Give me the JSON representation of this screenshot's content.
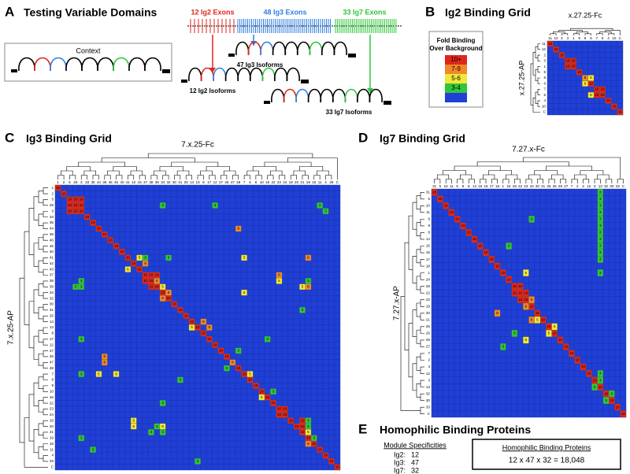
{
  "panel_a": {
    "letter": "A",
    "title": "Testing Variable Domains",
    "context": "Context",
    "exons": [
      "12 Ig2 Exons",
      "48 Ig3 Exons",
      "33 Ig7 Exons"
    ],
    "isoforms": [
      "47 Ig3 Isoforms",
      "12 Ig2 Isoforms",
      "33 Ig7 Isoforms"
    ]
  },
  "panel_b": {
    "letter": "B",
    "title": "Ig2 Binding Grid",
    "legend": {
      "title": [
        "Fold Binding",
        "Over Background"
      ],
      "levels": [
        {
          "label": "10+",
          "color": "#e0261b"
        },
        {
          "label": "7-9",
          "color": "#f0892a"
        },
        {
          "label": "5-6",
          "color": "#f2e83a"
        },
        {
          "label": "3-4",
          "color": "#2fc63a"
        }
      ],
      "background_color": "#1f3fd6"
    },
    "grid": {
      "x_label": "x.27.25-Fc",
      "y_label": "x.27.25-AP",
      "labels": [
        "11",
        "12",
        "2",
        "3",
        "1",
        "9",
        "8",
        "6",
        "7",
        "5",
        "4",
        "10",
        "C"
      ],
      "diagonal": [
        10,
        10,
        10,
        10,
        10,
        10,
        8,
        10,
        10,
        10,
        10,
        10,
        10
      ],
      "cells": [
        [
          3,
          4,
          10
        ],
        [
          4,
          3,
          10
        ],
        [
          6,
          7,
          6
        ],
        [
          7,
          6,
          6
        ],
        [
          8,
          9,
          10
        ],
        [
          9,
          8,
          10
        ],
        [
          9,
          7,
          5
        ]
      ]
    }
  },
  "panel_c": {
    "letter": "C",
    "title": "Ig3 Binding Grid",
    "grid": {
      "x_label": "7.x.25-Fc",
      "y_label": "7.x.25-AP",
      "labels": [
        "1",
        "2",
        "5",
        "28",
        "3",
        "33",
        "35",
        "44",
        "36",
        "46",
        "45",
        "40",
        "41",
        "42",
        "43",
        "37",
        "38",
        "39",
        "34",
        "32",
        "30",
        "31",
        "25",
        "14",
        "13",
        "8",
        "17",
        "12",
        "27",
        "26",
        "47",
        "48",
        "7",
        "6",
        "9",
        "10",
        "16",
        "22",
        "23",
        "24",
        "18",
        "20",
        "21",
        "19",
        "15",
        "11",
        "4",
        "29",
        "C"
      ],
      "diagonal": [
        10,
        10,
        10,
        10,
        10,
        10,
        10,
        10,
        10,
        10,
        10,
        10,
        10,
        10,
        10,
        10,
        10,
        10,
        10,
        10,
        10,
        10,
        10,
        10,
        10,
        10,
        10,
        10,
        10,
        10,
        10,
        10,
        10,
        10,
        10,
        10,
        10,
        10,
        10,
        10,
        10,
        10,
        10,
        10,
        10,
        10,
        10,
        10,
        10
      ],
      "cells": [
        [
          2,
          3,
          10
        ],
        [
          2,
          4,
          10
        ],
        [
          3,
          2,
          10
        ],
        [
          3,
          4,
          10
        ],
        [
          4,
          2,
          10
        ],
        [
          4,
          3,
          10
        ],
        [
          3,
          18,
          3
        ],
        [
          3,
          27,
          3
        ],
        [
          3,
          45,
          3
        ],
        [
          4,
          46,
          3
        ],
        [
          7,
          31,
          8
        ],
        [
          12,
          14,
          5
        ],
        [
          12,
          15,
          3
        ],
        [
          13,
          15,
          8
        ],
        [
          12,
          19,
          3
        ],
        [
          12,
          32,
          5
        ],
        [
          12,
          43,
          8
        ],
        [
          15,
          16,
          10
        ],
        [
          15,
          17,
          10
        ],
        [
          16,
          15,
          10
        ],
        [
          16,
          17,
          8
        ],
        [
          17,
          16,
          10
        ],
        [
          15,
          38,
          8
        ],
        [
          16,
          38,
          5
        ],
        [
          16,
          43,
          3
        ],
        [
          16,
          4,
          3
        ],
        [
          17,
          3,
          3
        ],
        [
          17,
          4,
          3
        ],
        [
          17,
          18,
          5
        ],
        [
          18,
          19,
          8
        ],
        [
          19,
          18,
          8
        ],
        [
          18,
          32,
          5
        ],
        [
          17,
          42,
          5
        ],
        [
          17,
          43,
          8
        ],
        [
          14,
          12,
          6
        ],
        [
          21,
          42,
          3
        ],
        [
          23,
          25,
          8
        ],
        [
          24,
          26,
          8
        ],
        [
          24,
          23,
          5
        ],
        [
          26,
          36,
          3
        ],
        [
          28,
          31,
          3
        ],
        [
          30,
          30,
          8
        ],
        [
          31,
          29,
          3
        ],
        [
          32,
          33,
          5
        ],
        [
          26,
          4,
          3
        ],
        [
          29,
          8,
          8
        ],
        [
          30,
          8,
          8
        ],
        [
          32,
          4,
          3
        ],
        [
          32,
          7,
          5
        ],
        [
          32,
          10,
          6
        ],
        [
          33,
          21,
          3
        ],
        [
          35,
          37,
          3
        ],
        [
          36,
          35,
          5
        ],
        [
          38,
          39,
          10
        ],
        [
          39,
          38,
          10
        ],
        [
          37,
          18,
          3
        ],
        [
          40,
          13,
          5
        ],
        [
          41,
          13,
          6
        ],
        [
          41,
          17,
          3
        ],
        [
          41,
          18,
          6
        ],
        [
          42,
          16,
          3
        ],
        [
          42,
          18,
          3
        ],
        [
          40,
          42,
          10
        ],
        [
          41,
          42,
          10
        ],
        [
          41,
          43,
          3
        ],
        [
          42,
          43,
          5
        ],
        [
          43,
          44,
          3
        ],
        [
          44,
          43,
          8
        ],
        [
          40,
          43,
          3
        ],
        [
          43,
          4,
          3
        ],
        [
          45,
          6,
          3
        ],
        [
          47,
          24,
          3
        ]
      ]
    }
  },
  "panel_d": {
    "letter": "D",
    "title": "Ig7 Binding Grid",
    "grid": {
      "x_label": "7.27.x-Fc",
      "y_label": "7.27.x-AP",
      "labels": [
        "31",
        "5",
        "10",
        "11",
        "6",
        "9",
        "8",
        "14",
        "15",
        "16",
        "17",
        "18",
        "1",
        "24",
        "28",
        "22",
        "23",
        "19",
        "20",
        "21",
        "25",
        "26",
        "29",
        "27",
        "7",
        "2",
        "4",
        "12",
        "3",
        "13",
        "32",
        "30",
        "33",
        "C"
      ],
      "diagonal": [
        10,
        10,
        10,
        10,
        10,
        10,
        10,
        10,
        10,
        10,
        10,
        10,
        10,
        10,
        10,
        10,
        10,
        10,
        10,
        10,
        10,
        10,
        10,
        10,
        10,
        10,
        10,
        10,
        10,
        10,
        10,
        10,
        10,
        10
      ],
      "cells": [
        [
          0,
          29,
          3
        ],
        [
          1,
          29,
          3
        ],
        [
          2,
          29,
          3
        ],
        [
          3,
          29,
          3
        ],
        [
          4,
          29,
          3
        ],
        [
          5,
          29,
          3
        ],
        [
          6,
          29,
          3
        ],
        [
          7,
          29,
          3
        ],
        [
          8,
          29,
          3
        ],
        [
          9,
          29,
          3
        ],
        [
          10,
          29,
          3
        ],
        [
          12,
          29,
          3
        ],
        [
          4,
          17,
          3
        ],
        [
          8,
          13,
          3
        ],
        [
          12,
          16,
          5
        ],
        [
          14,
          15,
          10
        ],
        [
          15,
          14,
          10
        ],
        [
          15,
          16,
          10
        ],
        [
          16,
          15,
          10
        ],
        [
          16,
          17,
          8
        ],
        [
          17,
          16,
          8
        ],
        [
          18,
          11,
          8
        ],
        [
          19,
          18,
          5
        ],
        [
          20,
          21,
          5
        ],
        [
          21,
          20,
          5
        ],
        [
          22,
          16,
          6
        ],
        [
          21,
          14,
          3
        ],
        [
          23,
          12,
          3
        ],
        [
          27,
          29,
          3
        ],
        [
          28,
          29,
          3
        ],
        [
          29,
          28,
          3
        ],
        [
          30,
          31,
          3
        ],
        [
          31,
          30,
          3
        ],
        [
          19,
          17,
          8
        ]
      ]
    }
  },
  "panel_e": {
    "letter": "E",
    "title": "Homophilic Binding Proteins",
    "module_heading": "Module Specificities",
    "modules": [
      {
        "name": "Ig2:",
        "count": 12
      },
      {
        "name": "Ig3:",
        "count": 47
      },
      {
        "name": "Ig7:",
        "count": 32
      }
    ],
    "box_heading": "Homophilic Binding Proteins",
    "formula": "12 x 47 x 32 = 18,048"
  }
}
